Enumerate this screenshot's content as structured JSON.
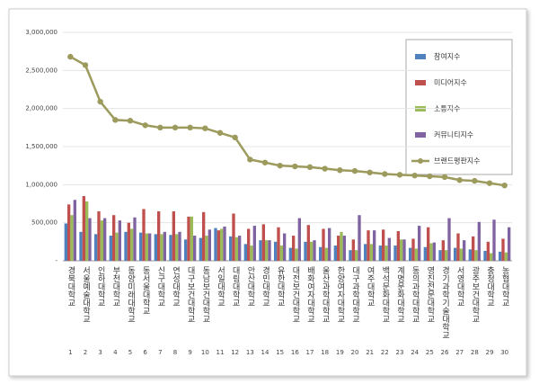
{
  "chart_data": {
    "type": "bar-line",
    "categories": [
      "경북대학교",
      "서울예술대학교",
      "인하대학교",
      "부천대학교",
      "동양미래대학교",
      "동서울대학교",
      "신구대학교",
      "연성대학교",
      "대구보건대학교",
      "동남보건대학교",
      "서일대학교",
      "대림대학교",
      "안산대학교",
      "경민대학교",
      "유한대학교",
      "대전보건대학교",
      "배화여자대학교",
      "울산과학대학교",
      "한양여자대학교",
      "대구과학대학교",
      "여주대학교",
      "백석문화대학교",
      "계명문화대학교",
      "동의과학대학교",
      "영진전문대학교",
      "경기과학기술대학교",
      "서영대학교",
      "광주보건대학교",
      "충청대학교",
      "농협대학교"
    ],
    "category_numbers": [
      1,
      2,
      3,
      4,
      5,
      6,
      7,
      8,
      9,
      10,
      11,
      12,
      13,
      14,
      15,
      16,
      17,
      18,
      19,
      20,
      21,
      22,
      23,
      24,
      25,
      26,
      27,
      28,
      29,
      30
    ],
    "ylim": [
      0,
      3000000
    ],
    "yticks": [
      {
        "value": 0,
        "label": "-"
      },
      {
        "value": 500000,
        "label": "500,000"
      },
      {
        "value": 1000000,
        "label": "1,000,000"
      },
      {
        "value": 1500000,
        "label": "1,500,000"
      },
      {
        "value": 2000000,
        "label": "2,000,000"
      },
      {
        "value": 2500000,
        "label": "2,500,000"
      },
      {
        "value": 3000000,
        "label": "3,000,000"
      }
    ],
    "grid": true,
    "series": [
      {
        "name": "참여지수",
        "type": "bar",
        "color": "#4f81bd",
        "values": [
          490000,
          380000,
          350000,
          330000,
          380000,
          370000,
          350000,
          340000,
          280000,
          300000,
          430000,
          320000,
          220000,
          270000,
          250000,
          170000,
          250000,
          180000,
          200000,
          140000,
          220000,
          200000,
          200000,
          170000,
          180000,
          140000,
          170000,
          150000,
          130000,
          120000
        ]
      },
      {
        "name": "미디어지수",
        "type": "bar",
        "color": "#c0504d",
        "values": [
          740000,
          850000,
          650000,
          600000,
          500000,
          680000,
          650000,
          650000,
          580000,
          640000,
          400000,
          620000,
          420000,
          480000,
          440000,
          330000,
          470000,
          420000,
          330000,
          280000,
          400000,
          410000,
          390000,
          290000,
          440000,
          270000,
          360000,
          320000,
          250000,
          290000
        ]
      },
      {
        "name": "소통지수",
        "type": "bar",
        "color": "#9bbb59",
        "values": [
          600000,
          780000,
          530000,
          370000,
          420000,
          360000,
          350000,
          350000,
          580000,
          330000,
          420000,
          310000,
          200000,
          270000,
          200000,
          160000,
          250000,
          170000,
          380000,
          140000,
          220000,
          200000,
          280000,
          160000,
          230000,
          140000,
          160000,
          140000,
          100000,
          110000
        ]
      },
      {
        "name": "커뮤니티지수",
        "type": "bar",
        "color": "#8064a2",
        "values": [
          800000,
          560000,
          560000,
          530000,
          570000,
          360000,
          380000,
          380000,
          330000,
          410000,
          450000,
          330000,
          460000,
          270000,
          360000,
          560000,
          270000,
          430000,
          330000,
          600000,
          400000,
          300000,
          280000,
          460000,
          240000,
          560000,
          270000,
          510000,
          540000,
          440000
        ]
      },
      {
        "name": "브랜드평판지수",
        "type": "line",
        "color": "#9c9a5c",
        "values": [
          2680000,
          2570000,
          2090000,
          1850000,
          1840000,
          1780000,
          1750000,
          1750000,
          1750000,
          1740000,
          1680000,
          1620000,
          1330000,
          1290000,
          1250000,
          1240000,
          1230000,
          1210000,
          1190000,
          1180000,
          1160000,
          1140000,
          1130000,
          1120000,
          1110000,
          1100000,
          1060000,
          1050000,
          1020000,
          990000
        ]
      }
    ]
  }
}
